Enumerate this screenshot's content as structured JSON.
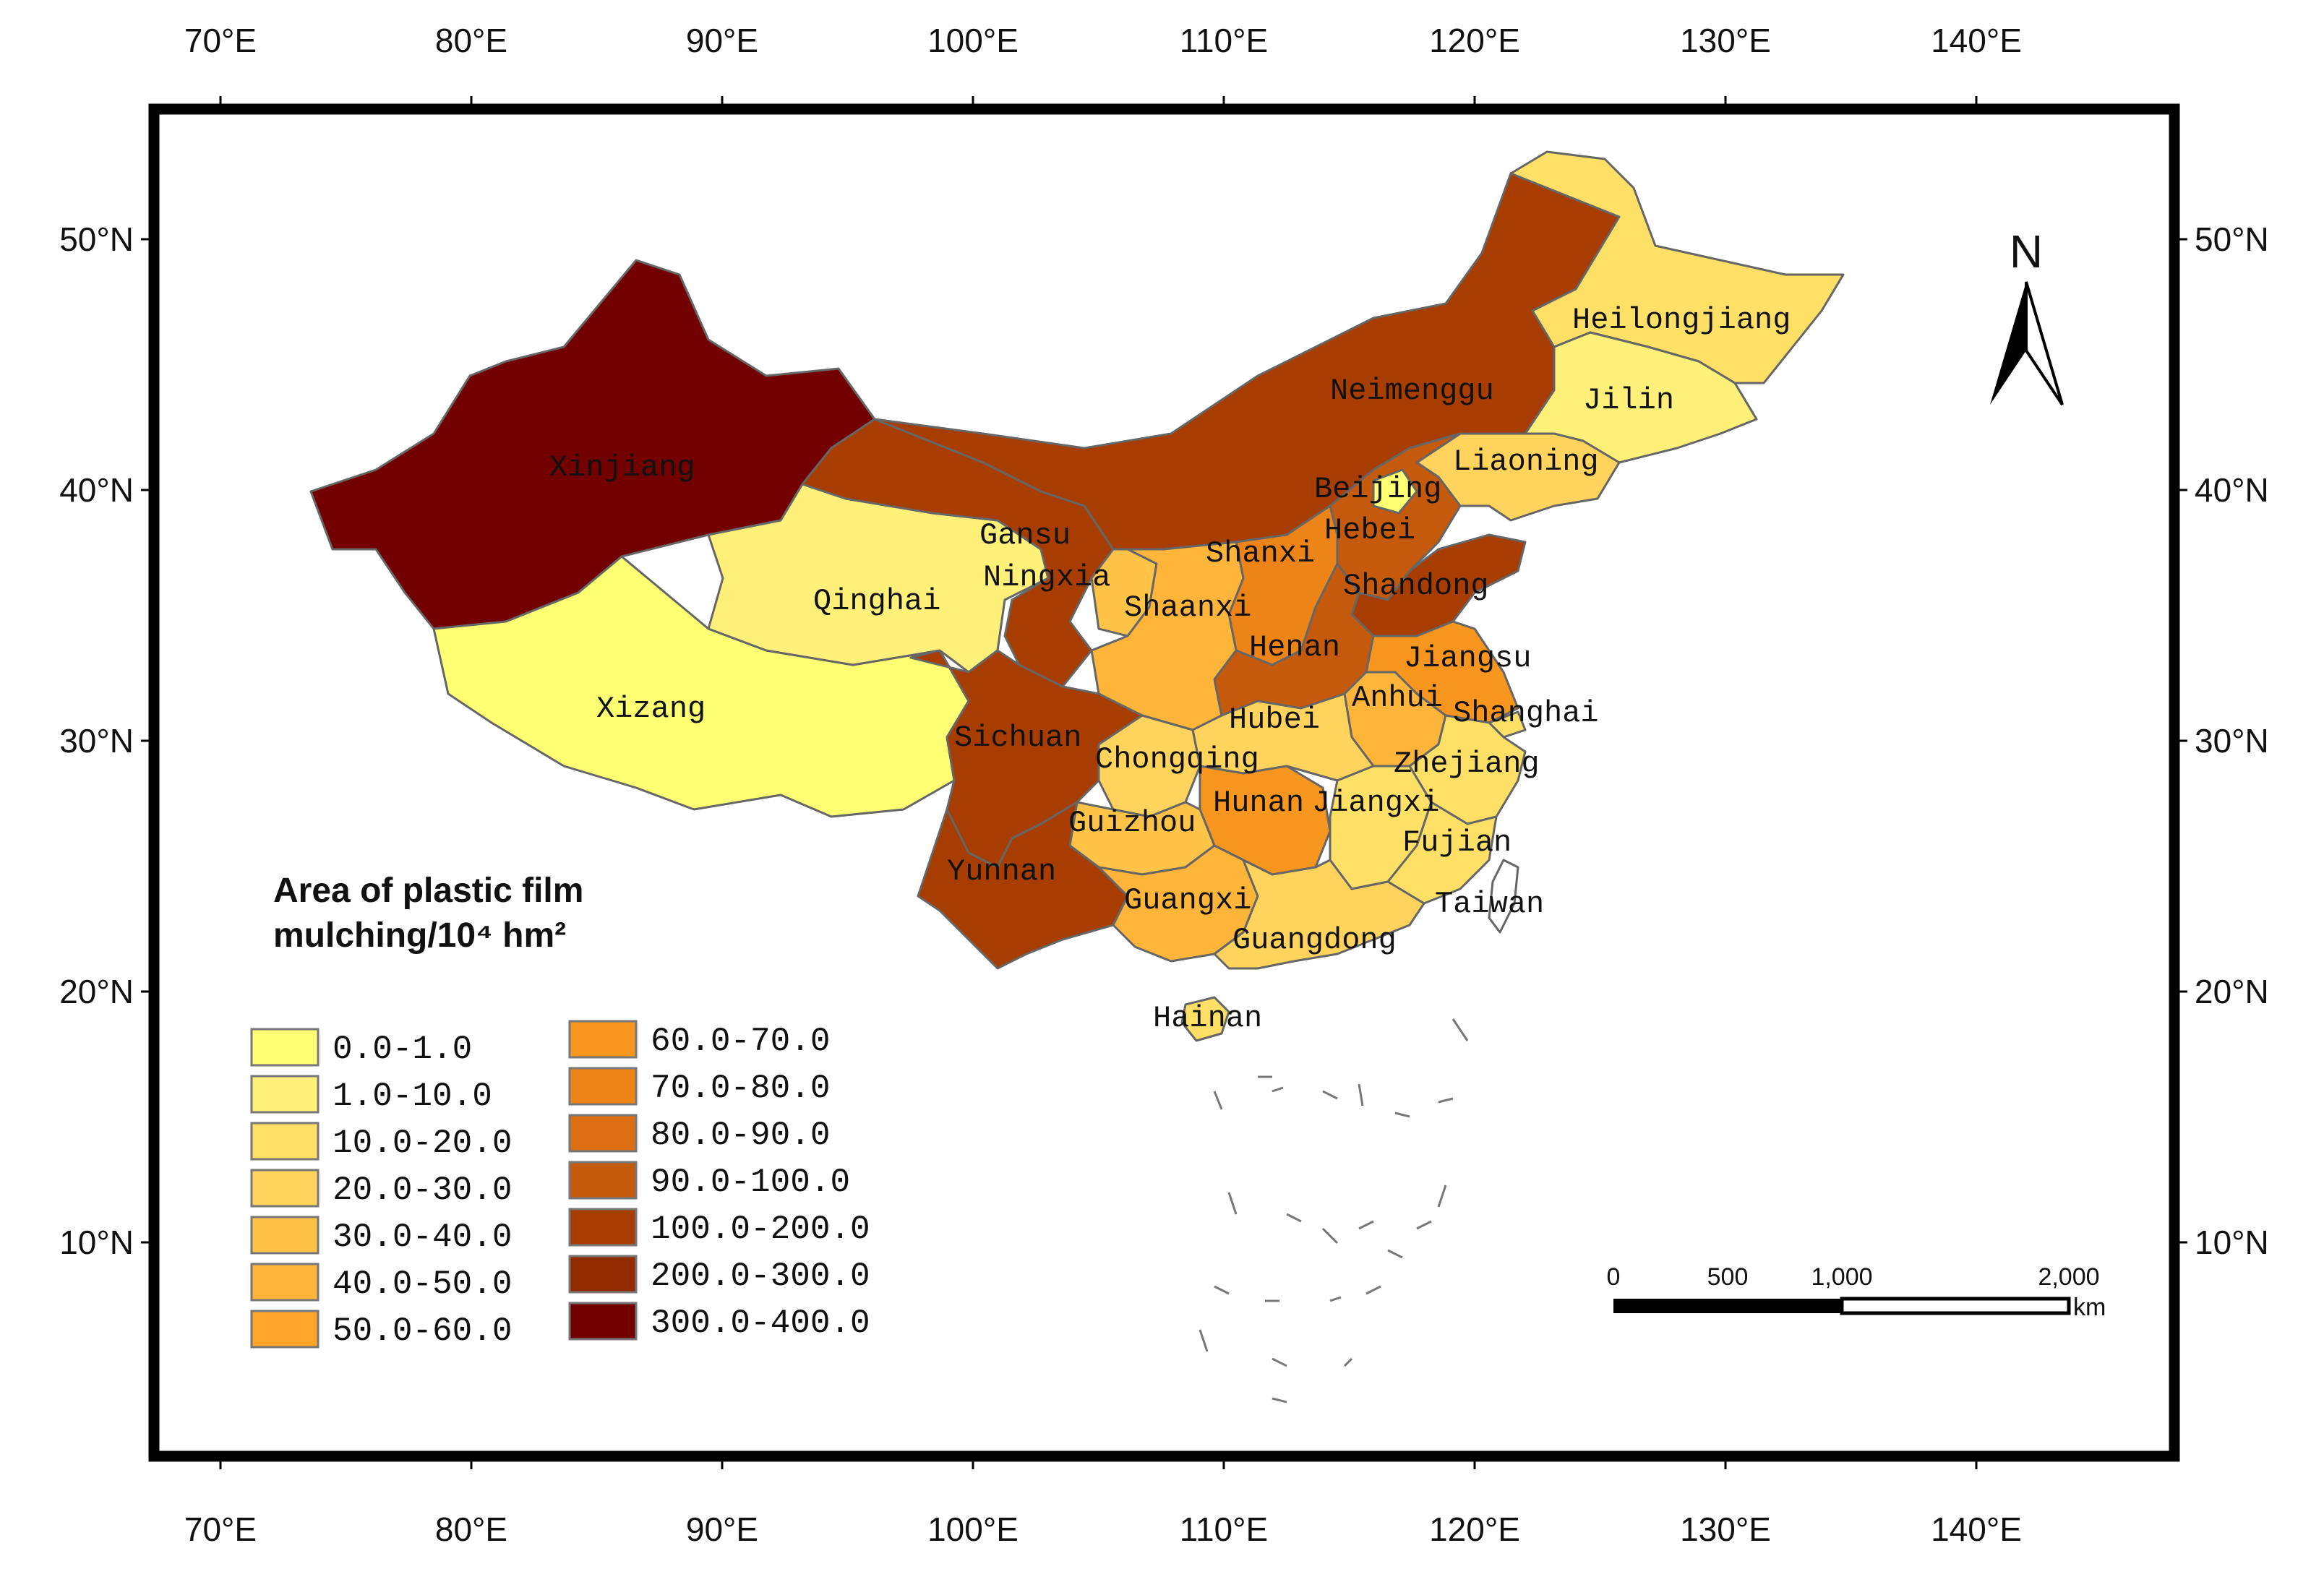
{
  "axes": {
    "lon_labels": [
      "70°E",
      "80°E",
      "90°E",
      "100°E",
      "110°E",
      "120°E",
      "130°E",
      "140°E"
    ],
    "lat_labels": [
      "50°N",
      "40°N",
      "30°N",
      "20°N",
      "10°N"
    ]
  },
  "north_arrow": {
    "label": "N",
    "icon": "north-arrow-icon"
  },
  "legend": {
    "title_line1": "Area of plastic film",
    "title_line2": "mulching/10⁴ hm²",
    "classes": [
      {
        "label": "0.0-1.0",
        "color": "#ffff73"
      },
      {
        "label": "1.0-10.0",
        "color": "#fff07a"
      },
      {
        "label": "10.0-20.0",
        "color": "#ffe066"
      },
      {
        "label": "20.0-30.0",
        "color": "#ffd35c"
      },
      {
        "label": "30.0-40.0",
        "color": "#ffc447"
      },
      {
        "label": "40.0-50.0",
        "color": "#ffb43a"
      },
      {
        "label": "50.0-60.0",
        "color": "#ffa52a"
      },
      {
        "label": "60.0-70.0",
        "color": "#f7961e"
      },
      {
        "label": "70.0-80.0",
        "color": "#ec8417"
      },
      {
        "label": "80.0-90.0",
        "color": "#db6e12"
      },
      {
        "label": "90.0-100.0",
        "color": "#c55a0c"
      },
      {
        "label": "100.0-200.0",
        "color": "#a83d02"
      },
      {
        "label": "200.0-300.0",
        "color": "#922b00"
      },
      {
        "label": "300.0-400.0",
        "color": "#730000"
      }
    ]
  },
  "scale_bar": {
    "ticks": [
      "0",
      "500",
      "1,000",
      "2,000"
    ],
    "unit": "km"
  },
  "provinces": [
    {
      "name": "Xinjiang",
      "color": "#730000"
    },
    {
      "name": "Xizang",
      "color": "#ffff73"
    },
    {
      "name": "Qinghai",
      "color": "#fff07a"
    },
    {
      "name": "Gansu",
      "color": "#a83d02"
    },
    {
      "name": "Neimenggu",
      "color": "#a83d02"
    },
    {
      "name": "Heilongjiang",
      "color": "#ffe066"
    },
    {
      "name": "Jilin",
      "color": "#fff07a"
    },
    {
      "name": "Liaoning",
      "color": "#ffd35c"
    },
    {
      "name": "Beijing",
      "color": "#ffff73"
    },
    {
      "name": "Hebei",
      "color": "#c55a0c"
    },
    {
      "name": "Shanxi",
      "color": "#ec8417"
    },
    {
      "name": "Ningxia",
      "color": "#ffc447"
    },
    {
      "name": "Shaanxi",
      "color": "#ffb43a"
    },
    {
      "name": "Shandong",
      "color": "#a83d02"
    },
    {
      "name": "Henan",
      "color": "#c55a0c"
    },
    {
      "name": "Jiangsu",
      "color": "#f7961e"
    },
    {
      "name": "Anhui",
      "color": "#ffb43a"
    },
    {
      "name": "Shanghai",
      "color": "#ffe066"
    },
    {
      "name": "Hubei",
      "color": "#ffd35c"
    },
    {
      "name": "Sichuan",
      "color": "#a83d02"
    },
    {
      "name": "Chongqing",
      "color": "#ffd35c"
    },
    {
      "name": "Zhejiang",
      "color": "#ffe066"
    },
    {
      "name": "Hunan",
      "color": "#f7961e"
    },
    {
      "name": "Jiangxi",
      "color": "#ffe066"
    },
    {
      "name": "Guizhou",
      "color": "#ffc447"
    },
    {
      "name": "Fujian",
      "color": "#ffe066"
    },
    {
      "name": "Yunnan",
      "color": "#a83d02"
    },
    {
      "name": "Guangxi",
      "color": "#ffb43a"
    },
    {
      "name": "Guangdong",
      "color": "#ffd35c"
    },
    {
      "name": "Taiwan",
      "color": "#ffffff"
    },
    {
      "name": "Hainan",
      "color": "#ffe066"
    }
  ]
}
